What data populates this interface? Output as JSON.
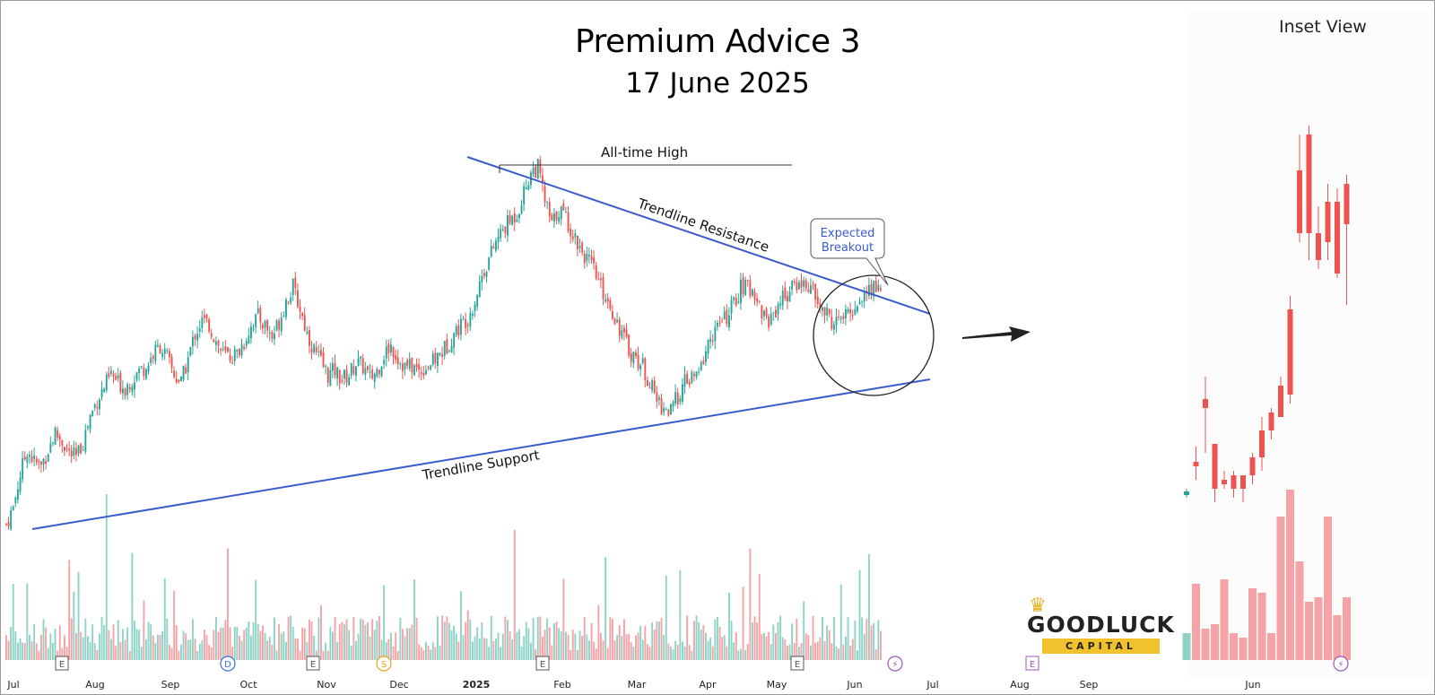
{
  "header": {
    "title": "Premium Advice 3",
    "subtitle": "17 June 2025",
    "inset_title": "Inset View"
  },
  "annotations": {
    "all_time_high": "All-time High",
    "resistance": "Trendline Resistance",
    "support": "Trendline Support",
    "callout_line1": "Expected",
    "callout_line2": "Breakout"
  },
  "logo": {
    "name": "GOODLUCK",
    "sub": "CAPITAL"
  },
  "colors": {
    "up": "#26a69a",
    "down": "#ef5350",
    "vol_up": "#8fd3c7",
    "vol_down": "#f5a3a6",
    "trend": "#3a5ccc",
    "event_e": "#555555",
    "event_d": "#3a6ee0",
    "event_s": "#f0a020",
    "event_lightning": "#9b59b6"
  },
  "chart_data": [
    {
      "type": "candlestick",
      "title": "",
      "x_ticks": [
        "Jul",
        "Aug",
        "Sep",
        "Oct",
        "Nov",
        "Dec",
        "2025",
        "Feb",
        "Mar",
        "Apr",
        "May",
        "Jun",
        "Jul",
        "Aug",
        "Sep"
      ],
      "event_markers": [
        {
          "label": "E",
          "near": "Aug"
        },
        {
          "label": "D",
          "near": "Sep"
        },
        {
          "label": "E",
          "near": "Nov"
        },
        {
          "label": "S",
          "near": "Dec"
        },
        {
          "label": "E",
          "near": "2025"
        },
        {
          "label": "E",
          "near": "May"
        },
        {
          "label": "⚡",
          "near": "Jun"
        },
        {
          "label": "E",
          "near": "Aug"
        }
      ],
      "trendlines": [
        "Trendline Resistance",
        "Trendline Support"
      ],
      "path_points": [
        [
          0,
          60
        ],
        [
          3,
          80
        ],
        [
          6,
          120
        ],
        [
          9,
          150
        ],
        [
          12,
          135
        ],
        [
          15,
          130
        ],
        [
          18,
          150
        ],
        [
          21,
          170
        ],
        [
          24,
          160
        ],
        [
          27,
          145
        ],
        [
          30,
          140
        ],
        [
          33,
          160
        ],
        [
          36,
          190
        ],
        [
          39,
          210
        ],
        [
          42,
          225
        ],
        [
          45,
          240
        ],
        [
          48,
          230
        ],
        [
          51,
          225
        ],
        [
          54,
          235
        ],
        [
          57,
          245
        ],
        [
          60,
          250
        ],
        [
          63,
          265
        ],
        [
          66,
          275
        ],
        [
          69,
          260
        ],
        [
          72,
          240
        ],
        [
          75,
          230
        ],
        [
          78,
          260
        ],
        [
          81,
          290
        ],
        [
          84,
          305
        ],
        [
          87,
          300
        ],
        [
          90,
          280
        ],
        [
          93,
          265
        ],
        [
          96,
          262
        ],
        [
          99,
          265
        ],
        [
          102,
          280
        ],
        [
          105,
          300
        ],
        [
          108,
          310
        ],
        [
          111,
          300
        ],
        [
          114,
          285
        ],
        [
          117,
          305
        ],
        [
          120,
          330
        ],
        [
          123,
          345
        ],
        [
          126,
          320
        ],
        [
          129,
          290
        ],
        [
          132,
          270
        ],
        [
          135,
          255
        ],
        [
          138,
          240
        ],
        [
          141,
          245
        ],
        [
          144,
          235
        ],
        [
          147,
          240
        ],
        [
          150,
          255
        ],
        [
          153,
          250
        ],
        [
          156,
          235
        ],
        [
          159,
          245
        ],
        [
          162,
          265
        ],
        [
          165,
          275
        ],
        [
          168,
          260
        ],
        [
          171,
          250
        ],
        [
          174,
          250
        ],
        [
          177,
          245
        ],
        [
          180,
          250
        ],
        [
          183,
          255
        ],
        [
          186,
          265
        ],
        [
          189,
          275
        ],
        [
          192,
          290
        ],
        [
          195,
          300
        ],
        [
          198,
          310
        ],
        [
          201,
          330
        ],
        [
          204,
          360
        ],
        [
          207,
          380
        ],
        [
          210,
          400
        ],
        [
          213,
          415
        ],
        [
          216,
          425
        ],
        [
          219,
          435
        ],
        [
          222,
          460
        ],
        [
          225,
          485
        ],
        [
          228,
          490
        ],
        [
          231,
          450
        ],
        [
          234,
          420
        ],
        [
          237,
          440
        ],
        [
          240,
          430
        ],
        [
          243,
          410
        ],
        [
          246,
          395
        ],
        [
          249,
          380
        ],
        [
          252,
          365
        ],
        [
          255,
          345
        ],
        [
          258,
          330
        ],
        [
          261,
          310
        ],
        [
          264,
          290
        ],
        [
          267,
          270
        ],
        [
          270,
          260
        ],
        [
          273,
          250
        ],
        [
          276,
          230
        ],
        [
          279,
          210
        ],
        [
          282,
          200
        ],
        [
          285,
          195
        ],
        [
          288,
          215
        ],
        [
          291,
          230
        ],
        [
          294,
          235
        ],
        [
          297,
          240
        ],
        [
          300,
          270
        ],
        [
          303,
          290
        ],
        [
          306,
          300
        ],
        [
          309,
          310
        ],
        [
          312,
          325
        ],
        [
          315,
          345
        ],
        [
          318,
          345
        ],
        [
          321,
          340
        ],
        [
          324,
          315
        ],
        [
          327,
          305
        ],
        [
          330,
          320
        ],
        [
          333,
          335
        ],
        [
          336,
          340
        ],
        [
          339,
          350
        ],
        [
          342,
          350
        ],
        [
          345,
          345
        ],
        [
          348,
          325
        ],
        [
          351,
          315
        ],
        [
          354,
          305
        ],
        [
          357,
          305
        ],
        [
          360,
          310
        ],
        [
          363,
          318
        ],
        [
          366,
          330
        ],
        [
          369,
          340
        ],
        [
          372,
          345
        ],
        [
          375,
          348
        ],
        [
          378,
          350
        ],
        [
          381,
          360
        ],
        [
          384,
          375
        ],
        [
          387,
          372
        ],
        [
          390,
          395
        ]
      ]
    },
    {
      "type": "candlestick",
      "title": "Inset View",
      "x_ticks": [
        "Jun"
      ],
      "trend": "sharp rally then consolidation near highs"
    }
  ]
}
